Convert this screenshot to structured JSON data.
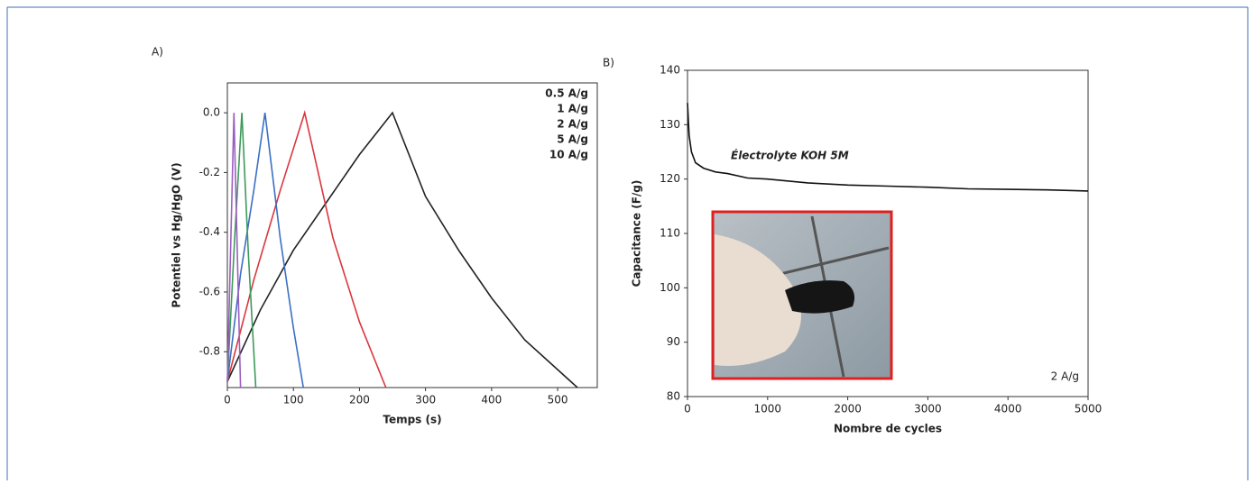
{
  "chart_data": [
    {
      "type": "line",
      "panel_label": "A)",
      "x_label": "Temps (s)",
      "y_label": "Potentiel vs Hg/HgO (V)",
      "xlim": [
        0,
        560
      ],
      "xticks": [
        0,
        100,
        200,
        300,
        400,
        500
      ],
      "ylim": [
        -0.92,
        0.1
      ],
      "yticks": [
        {
          "value": 0,
          "label": "0.0"
        },
        -0.2,
        -0.4,
        -0.6,
        -0.8
      ],
      "legend": "upper right",
      "series": [
        {
          "name": "0.5 A/g",
          "color": "#222222",
          "x": [
            0,
            50,
            100,
            150,
            200,
            250,
            300,
            350,
            400,
            450,
            500,
            530
          ],
          "values": [
            -0.9,
            -0.66,
            -0.46,
            -0.3,
            -0.14,
            0,
            -0.28,
            -0.46,
            -0.62,
            -0.76,
            -0.86,
            -0.92
          ]
        },
        {
          "name": "1 A/g",
          "color": "#d9363e",
          "x": [
            0,
            40,
            80,
            117,
            160,
            200,
            240
          ],
          "values": [
            -0.9,
            -0.56,
            -0.26,
            0,
            -0.42,
            -0.7,
            -0.92
          ]
        },
        {
          "name": "2 A/g",
          "color": "#3b6fc4",
          "x": [
            0,
            20,
            40,
            57,
            80,
            100,
            115
          ],
          "values": [
            -0.9,
            -0.54,
            -0.26,
            0,
            -0.42,
            -0.72,
            -0.92
          ]
        },
        {
          "name": "5 A/g",
          "color": "#3c9a5a",
          "x": [
            0,
            11,
            22,
            32,
            43
          ],
          "values": [
            -0.9,
            -0.42,
            0,
            -0.48,
            -0.92
          ]
        },
        {
          "name": "10 A/g",
          "color": "#9b5fc0",
          "x": [
            0,
            10,
            20
          ],
          "values": [
            -0.9,
            0,
            -0.92
          ]
        }
      ]
    },
    {
      "type": "line",
      "panel_label": "B)",
      "x_label": "Nombre de cycles",
      "y_label": "Capacitance (F/g)",
      "xlim": [
        0,
        5000
      ],
      "xticks": [
        0,
        1000,
        2000,
        3000,
        4000,
        5000
      ],
      "ylim": [
        80,
        140
      ],
      "yticks": [
        80,
        90,
        100,
        110,
        120,
        130,
        140
      ],
      "annotations": [
        "Électrolyte KOH 5M",
        "2 A/g"
      ],
      "series": [
        {
          "color": "#111111",
          "x": [
            0,
            20,
            50,
            100,
            200,
            350,
            500,
            750,
            1000,
            1500,
            2000,
            2500,
            3000,
            3500,
            4000,
            4500,
            5000
          ],
          "values": [
            134,
            128,
            125,
            123,
            122,
            121.3,
            121,
            120.2,
            120,
            119.3,
            118.9,
            118.7,
            118.5,
            118.2,
            118.1,
            118,
            117.8
          ]
        }
      ]
    }
  ]
}
